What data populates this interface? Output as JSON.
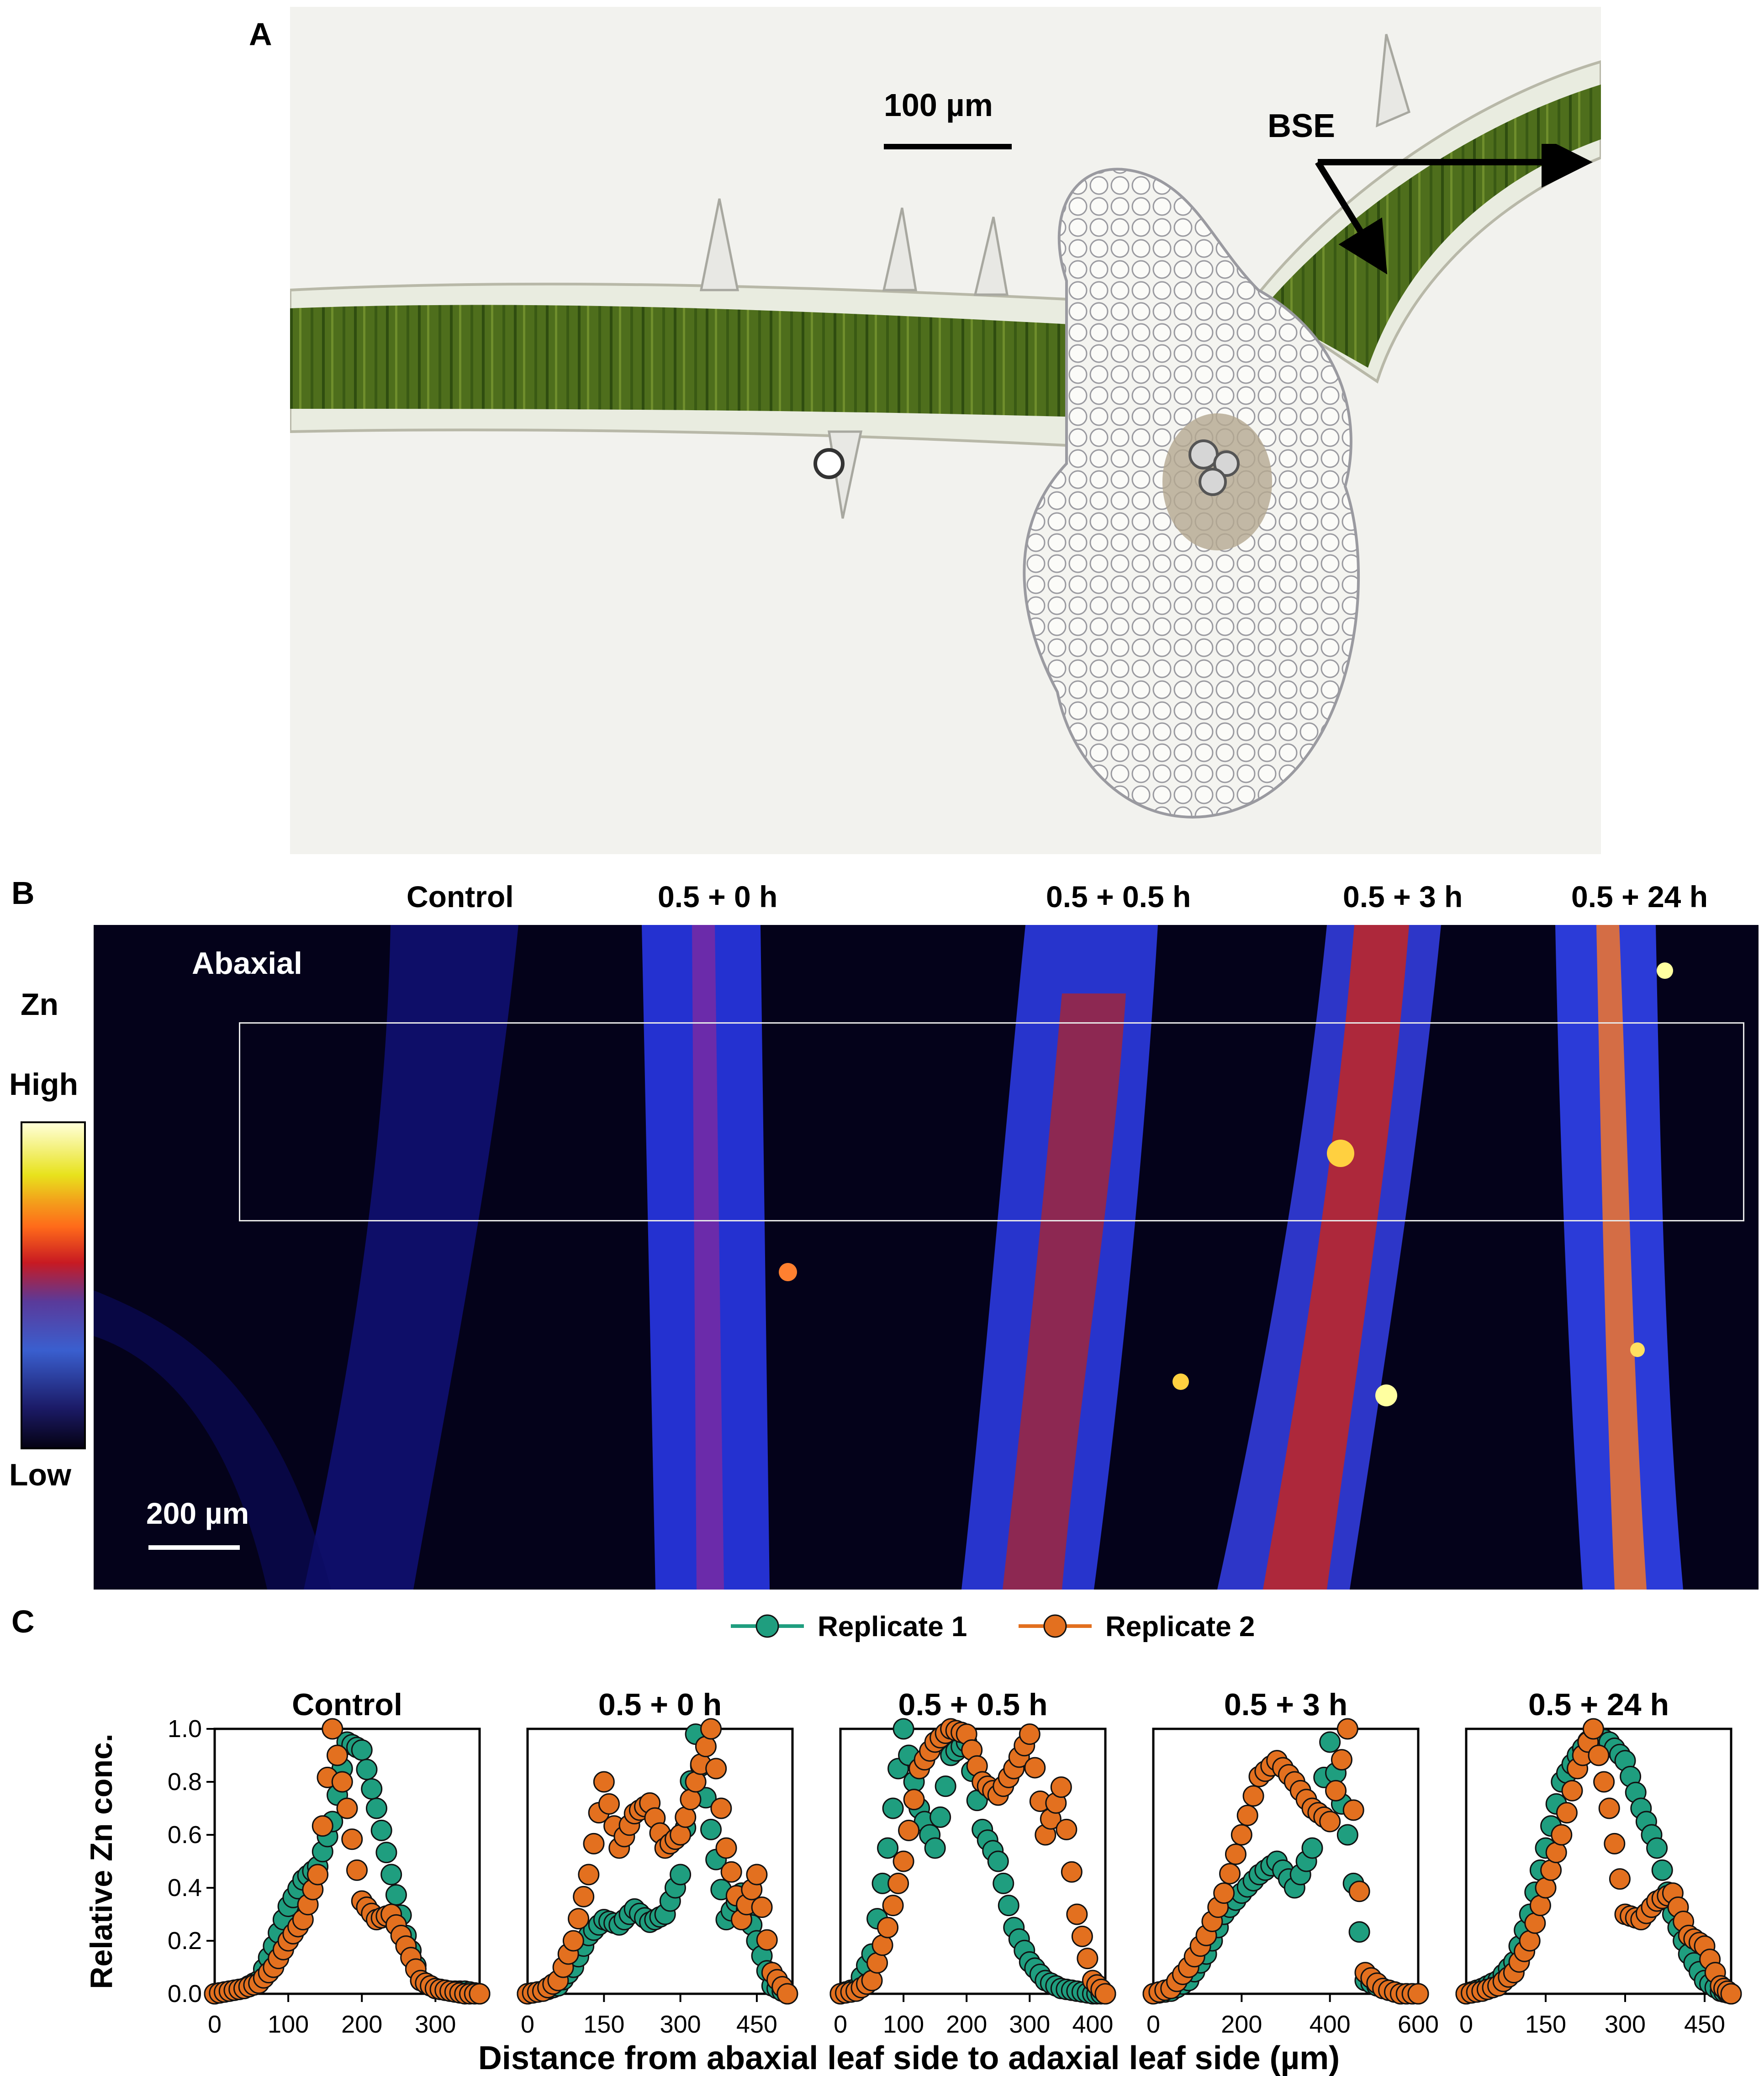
{
  "panels": {
    "a": {
      "letter": "A",
      "scale_label": "100 µm",
      "arrow_label": "BSE"
    },
    "b": {
      "letter": "B",
      "conditions": [
        "Control",
        "0.5 + 0 h",
        "0.5 + 0.5 h",
        "0.5 + 3 h",
        "0.5 + 24 h"
      ],
      "side_label": "Abaxial",
      "element": "Zn",
      "high": "High",
      "low": "Low",
      "scale_label": "200 µm",
      "colormap": [
        "#050214",
        "#1b1a66",
        "#3a5fcf",
        "#5a3a9a",
        "#c81a22",
        "#ff6a1a",
        "#f3a11b",
        "#e8e21c",
        "#ffffd8"
      ]
    },
    "c": {
      "letter": "C"
    }
  },
  "chart_data": [
    {
      "type": "scatter",
      "title": "Control",
      "xlabel": "Distance from abaxial leaf side to adaxial leaf side (µm)",
      "ylabel": "Relative Zn conc.",
      "xlim": [
        0,
        360
      ],
      "ylim": [
        0,
        1.0
      ],
      "xticks": [
        0,
        100,
        200,
        300
      ],
      "yticks": [
        0.0,
        0.2,
        0.4,
        0.6,
        0.8,
        1.0
      ],
      "legend": "top-center",
      "series": [
        {
          "name": "Replicate 1",
          "color": "#1f9e7f",
          "x": [
            0,
            20,
            40,
            60,
            80,
            100,
            120,
            140,
            160,
            180,
            200,
            220,
            240,
            260,
            280,
            300,
            320,
            340,
            360
          ],
          "y": [
            0.0,
            0.01,
            0.02,
            0.05,
            0.18,
            0.33,
            0.43,
            0.48,
            0.65,
            0.95,
            0.92,
            0.7,
            0.45,
            0.22,
            0.05,
            0.02,
            0.01,
            0.01,
            0.0
          ]
        },
        {
          "name": "Replicate 2",
          "color": "#e3701f",
          "x": [
            0,
            20,
            40,
            60,
            80,
            100,
            120,
            140,
            160,
            180,
            200,
            220,
            240,
            260,
            280,
            300,
            320,
            340,
            360
          ],
          "y": [
            0.0,
            0.01,
            0.02,
            0.04,
            0.1,
            0.2,
            0.28,
            0.45,
            1.0,
            0.7,
            0.35,
            0.28,
            0.3,
            0.18,
            0.05,
            0.02,
            0.01,
            0.0,
            0.0
          ]
        }
      ]
    },
    {
      "type": "scatter",
      "title": "0.5 + 0 h",
      "xlim": [
        0,
        520
      ],
      "ylim": [
        0,
        1.0
      ],
      "xticks": [
        0,
        150,
        300,
        450
      ],
      "yticks": [
        0.0,
        0.2,
        0.4,
        0.6,
        0.8,
        1.0
      ],
      "series": [
        {
          "name": "Replicate 1",
          "color": "#1f9e7f",
          "x": [
            0,
            30,
            60,
            90,
            120,
            150,
            180,
            210,
            240,
            270,
            300,
            330,
            360,
            390,
            420,
            450,
            480,
            510
          ],
          "y": [
            0.0,
            0.01,
            0.03,
            0.1,
            0.22,
            0.28,
            0.26,
            0.32,
            0.27,
            0.3,
            0.45,
            0.98,
            0.62,
            0.28,
            0.38,
            0.2,
            0.03,
            0.0
          ]
        },
        {
          "name": "Replicate 2",
          "color": "#e3701f",
          "x": [
            0,
            30,
            60,
            90,
            120,
            150,
            180,
            210,
            240,
            270,
            300,
            330,
            360,
            390,
            420,
            450,
            480,
            510
          ],
          "y": [
            0.0,
            0.01,
            0.05,
            0.2,
            0.45,
            0.8,
            0.55,
            0.68,
            0.72,
            0.55,
            0.6,
            0.8,
            1.0,
            0.55,
            0.28,
            0.45,
            0.08,
            0.0
          ]
        }
      ]
    },
    {
      "type": "scatter",
      "title": "0.5 + 0.5 h",
      "xlim": [
        0,
        420
      ],
      "ylim": [
        0,
        1.0
      ],
      "xticks": [
        0,
        100,
        200,
        300,
        400
      ],
      "yticks": [
        0.0,
        0.2,
        0.4,
        0.6,
        0.8,
        1.0
      ],
      "series": [
        {
          "name": "Replicate 1",
          "color": "#1f9e7f",
          "x": [
            0,
            25,
            50,
            75,
            100,
            125,
            150,
            175,
            200,
            225,
            250,
            275,
            300,
            325,
            350,
            375,
            400,
            420
          ],
          "y": [
            0.0,
            0.02,
            0.15,
            0.55,
            1.0,
            0.7,
            0.55,
            0.9,
            0.95,
            0.62,
            0.5,
            0.25,
            0.12,
            0.05,
            0.02,
            0.01,
            0.0,
            0.0
          ]
        },
        {
          "name": "Replicate 2",
          "color": "#e3701f",
          "x": [
            0,
            25,
            50,
            75,
            100,
            125,
            150,
            175,
            200,
            225,
            250,
            275,
            300,
            325,
            350,
            375,
            400,
            420
          ],
          "y": [
            0.0,
            0.01,
            0.05,
            0.25,
            0.5,
            0.85,
            0.95,
            1.0,
            0.98,
            0.8,
            0.75,
            0.85,
            0.98,
            0.6,
            0.78,
            0.3,
            0.05,
            0.0
          ]
        }
      ]
    },
    {
      "type": "scatter",
      "title": "0.5 + 3 h",
      "xlim": [
        0,
        600
      ],
      "ylim": [
        0,
        1.0
      ],
      "xticks": [
        0,
        200,
        400,
        600
      ],
      "yticks": [
        0.0,
        0.2,
        0.4,
        0.6,
        0.8,
        1.0
      ],
      "series": [
        {
          "name": "Replicate 1",
          "color": "#1f9e7f",
          "x": [
            0,
            40,
            80,
            120,
            160,
            200,
            240,
            280,
            320,
            360,
            400,
            440,
            480,
            520,
            560,
            600
          ],
          "y": [
            0.0,
            0.01,
            0.05,
            0.15,
            0.3,
            0.38,
            0.45,
            0.5,
            0.4,
            0.55,
            0.95,
            0.6,
            0.05,
            0.02,
            0.0,
            0.0
          ]
        },
        {
          "name": "Replicate 2",
          "color": "#e3701f",
          "x": [
            0,
            40,
            80,
            120,
            160,
            200,
            240,
            280,
            320,
            360,
            400,
            440,
            480,
            520,
            560,
            600
          ],
          "y": [
            0.0,
            0.02,
            0.1,
            0.22,
            0.38,
            0.6,
            0.82,
            0.88,
            0.8,
            0.7,
            0.65,
            1.0,
            0.08,
            0.02,
            0.0,
            0.0
          ]
        }
      ]
    },
    {
      "type": "scatter",
      "title": "0.5 + 24 h",
      "xlim": [
        0,
        500
      ],
      "ylim": [
        0,
        1.0
      ],
      "xticks": [
        0,
        150,
        300,
        450
      ],
      "yticks": [
        0.0,
        0.2,
        0.4,
        0.6,
        0.8,
        1.0
      ],
      "series": [
        {
          "name": "Replicate 1",
          "color": "#1f9e7f",
          "x": [
            0,
            30,
            60,
            90,
            120,
            150,
            180,
            210,
            240,
            270,
            300,
            330,
            360,
            390,
            420,
            450,
            480,
            500
          ],
          "y": [
            0.0,
            0.02,
            0.05,
            0.12,
            0.3,
            0.55,
            0.8,
            0.9,
            0.98,
            0.95,
            0.88,
            0.7,
            0.55,
            0.3,
            0.15,
            0.05,
            0.01,
            0.0
          ]
        },
        {
          "name": "Replicate 2",
          "color": "#e3701f",
          "x": [
            0,
            30,
            60,
            90,
            120,
            150,
            180,
            210,
            240,
            270,
            300,
            330,
            360,
            390,
            420,
            450,
            480,
            500
          ],
          "y": [
            0.0,
            0.01,
            0.03,
            0.08,
            0.2,
            0.4,
            0.6,
            0.85,
            1.0,
            0.7,
            0.3,
            0.28,
            0.35,
            0.38,
            0.22,
            0.18,
            0.03,
            0.0
          ]
        }
      ]
    }
  ]
}
